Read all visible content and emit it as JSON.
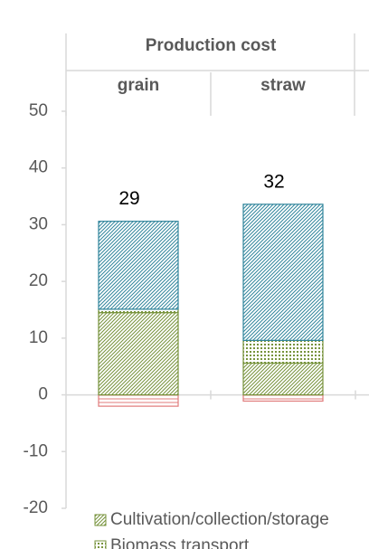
{
  "chart_data": {
    "type": "bar",
    "stacked": true,
    "header": "Production cost",
    "categories": [
      "grain",
      "straw"
    ],
    "series": [
      {
        "values": [
          -2,
          -1.1
        ],
        "color": "#e07b7b",
        "pattern": "horizontal"
      },
      {
        "name": "Cultivation/collection/storage",
        "values": [
          14.5,
          5.6
        ],
        "color": "#77933c",
        "pattern": "diagonal"
      },
      {
        "name": "Biomass transport",
        "values": [
          0.6,
          4
        ],
        "color": "#77933c",
        "pattern": "dots"
      },
      {
        "values": [
          15.5,
          24
        ],
        "color": "#31859c",
        "pattern": "diagonal"
      }
    ],
    "totals": [
      29,
      32
    ],
    "ylim": [
      -20,
      50
    ],
    "yticks": [
      -20,
      -10,
      0,
      10,
      20,
      30,
      40,
      50
    ]
  }
}
